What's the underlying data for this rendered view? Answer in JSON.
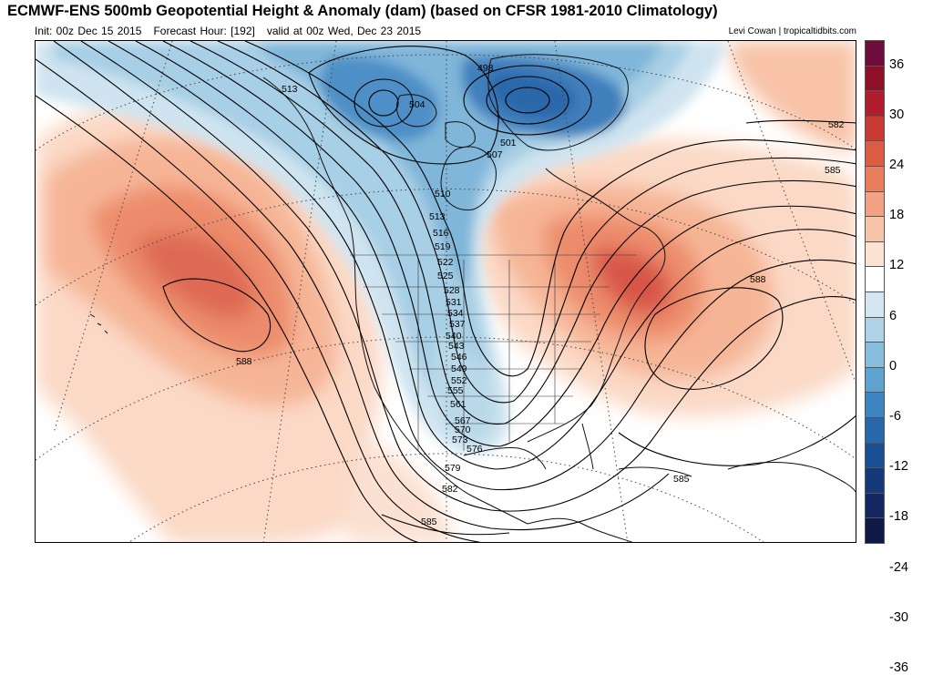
{
  "header": {
    "title": "ECMWF-ENS 500mb Geopotential Height & Anomaly (dam) (based on CFSR 1981-2010 Climatology)",
    "init": "Init: 00z Dec 15 2015",
    "forecast_hour": "Forecast Hour: [192]",
    "valid": "valid at 00z Wed, Dec 23 2015",
    "credit": "Levi Cowan | tropicaltidbits.com"
  },
  "colorbar": {
    "labels": [
      "36",
      "30",
      "24",
      "18",
      "12",
      "6",
      "0",
      "-6",
      "-12",
      "-18",
      "-24",
      "-30",
      "-36"
    ],
    "colors": [
      "#6e0c3c",
      "#8f0f26",
      "#b01d2c",
      "#c93a35",
      "#dc5c44",
      "#e97e5e",
      "#f2a283",
      "#f7c4a9",
      "#fbe3d4",
      "#ffffff",
      "#d4e7f1",
      "#aed3e7",
      "#86bcdc",
      "#5fa1cf",
      "#3d85c0",
      "#2668ab",
      "#1a4f93",
      "#16397a",
      "#142763",
      "#0f1a48"
    ]
  },
  "contour_labels": [
    "513",
    "504",
    "498",
    "501",
    "507",
    "510",
    "513",
    "516",
    "519",
    "522",
    "525",
    "528",
    "531",
    "534",
    "537",
    "540",
    "543",
    "546",
    "549",
    "552",
    "555",
    "561",
    "567",
    "570",
    "573",
    "576",
    "579",
    "582",
    "585",
    "588",
    "588",
    "582",
    "585",
    "585"
  ]
}
